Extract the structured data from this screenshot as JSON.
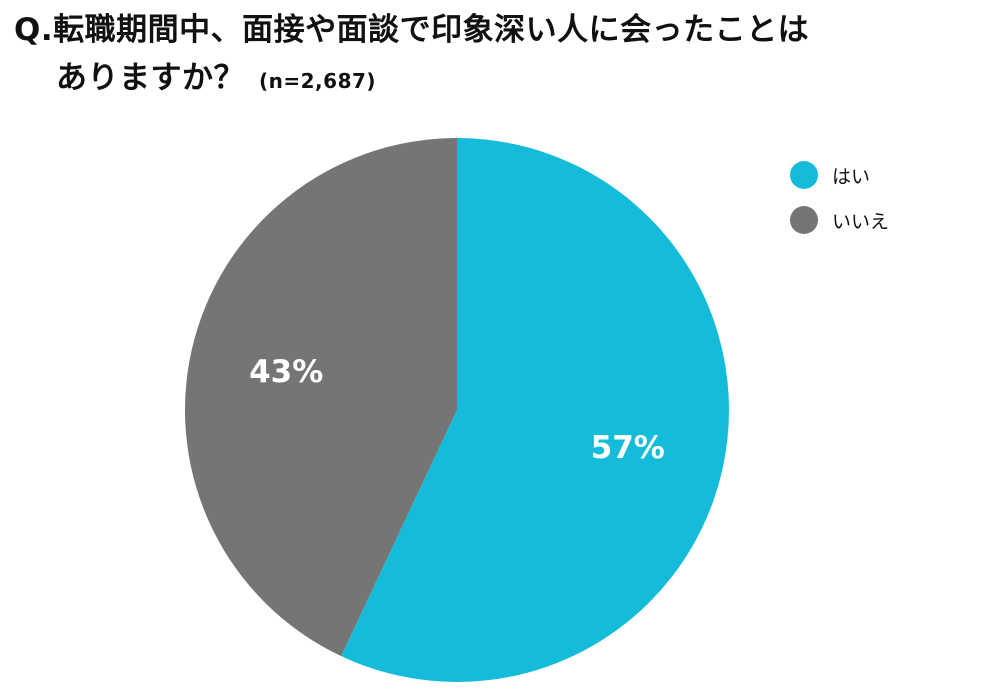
{
  "title": {
    "line1": "Q.転職期間中、面接や面談で印象深い人に会ったことは",
    "line2": "ありますか？",
    "sample": "(n=2,687)"
  },
  "chart_data": {
    "type": "pie",
    "slices": [
      {
        "name": "はい",
        "value": 57,
        "label": "57%",
        "color": "#15bcd9"
      },
      {
        "name": "いいえ",
        "value": 43,
        "label": "43%",
        "color": "#757575"
      }
    ],
    "start": "12 o'clock",
    "direction": "clockwise",
    "legend": {
      "position": "top-right"
    }
  }
}
